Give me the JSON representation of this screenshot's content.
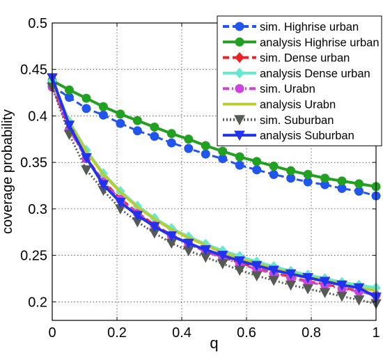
{
  "chart_data": {
    "type": "line",
    "title": "",
    "xlabel": "q",
    "ylabel": "coverage probability",
    "xlim": [
      0,
      1
    ],
    "ylim": [
      0.18,
      0.5
    ],
    "xticks": [
      0,
      0.2,
      0.4,
      0.6,
      0.8,
      1
    ],
    "xtick_labels": [
      "0",
      "0.2",
      "0.4",
      "0.6",
      "0.8",
      "1"
    ],
    "yticks": [
      0.2,
      0.25,
      0.3,
      0.35,
      0.4,
      0.45,
      0.5
    ],
    "ytick_labels": [
      "0.2",
      "0.25",
      "0.3",
      "0.35",
      "0.4",
      "0.45",
      "0.5"
    ],
    "grid": true,
    "legend_position": "top-right",
    "x": [
      0,
      0.0526,
      0.1053,
      0.1579,
      0.2105,
      0.2632,
      0.3158,
      0.3684,
      0.4211,
      0.4737,
      0.5263,
      0.5789,
      0.6316,
      0.6842,
      0.7368,
      0.7895,
      0.8421,
      0.8947,
      0.9474,
      1
    ],
    "series": [
      {
        "name": "sim. Highrise urban",
        "color": "#2255ee",
        "style": "dashed",
        "marker": "circle-filled",
        "values": [
          0.432,
          0.42,
          0.408,
          0.401,
          0.392,
          0.384,
          0.378,
          0.371,
          0.365,
          0.359,
          0.354,
          0.347,
          0.342,
          0.337,
          0.333,
          0.329,
          0.326,
          0.322,
          0.319,
          0.314
        ]
      },
      {
        "name": "analysis Highrise urban",
        "color": "#22a022",
        "style": "solid",
        "marker": "circle-filled",
        "values": [
          0.438,
          0.428,
          0.419,
          0.41,
          0.402,
          0.395,
          0.388,
          0.381,
          0.375,
          0.368,
          0.362,
          0.356,
          0.351,
          0.346,
          0.341,
          0.337,
          0.333,
          0.33,
          0.327,
          0.324
        ]
      },
      {
        "name": "sim. Dense urban",
        "color": "#ee2222",
        "style": "dashed",
        "marker": "diamond",
        "values": [
          0.432,
          0.386,
          0.355,
          0.33,
          0.311,
          0.296,
          0.283,
          0.272,
          0.263,
          0.255,
          0.248,
          0.242,
          0.236,
          0.231,
          0.227,
          0.222,
          0.219,
          0.215,
          0.212,
          0.208
        ]
      },
      {
        "name": "analysis Dense urban",
        "color": "#66e8cc",
        "style": "solid",
        "marker": "diamond",
        "values": [
          0.438,
          0.394,
          0.363,
          0.338,
          0.319,
          0.303,
          0.29,
          0.279,
          0.27,
          0.262,
          0.255,
          0.249,
          0.243,
          0.238,
          0.233,
          0.229,
          0.225,
          0.221,
          0.218,
          0.215
        ]
      },
      {
        "name": "sim. Urabn",
        "color": "#cc44dd",
        "style": "dashdot",
        "marker": "circle-filled",
        "values": [
          0.431,
          0.385,
          0.354,
          0.329,
          0.31,
          0.295,
          0.282,
          0.271,
          0.262,
          0.254,
          0.247,
          0.241,
          0.235,
          0.23,
          0.226,
          0.221,
          0.218,
          0.214,
          0.211,
          0.207
        ]
      },
      {
        "name": "analysis Urabn",
        "color": "#bbcc33",
        "style": "solid",
        "marker": "none",
        "values": [
          0.438,
          0.393,
          0.362,
          0.337,
          0.318,
          0.302,
          0.289,
          0.278,
          0.269,
          0.261,
          0.253,
          0.247,
          0.241,
          0.236,
          0.231,
          0.227,
          0.223,
          0.219,
          0.215,
          0.212
        ]
      },
      {
        "name": "sim. Suburban",
        "color": "#555a55",
        "style": "dotted",
        "marker": "triangle-down",
        "values": [
          0.431,
          0.38,
          0.342,
          0.32,
          0.3,
          0.286,
          0.274,
          0.263,
          0.255,
          0.248,
          0.241,
          0.234,
          0.228,
          0.223,
          0.218,
          0.214,
          0.21,
          0.206,
          0.202,
          0.198
        ]
      },
      {
        "name": "analysis Suburban",
        "color": "#2233ee",
        "style": "solid",
        "marker": "triangle-down",
        "values": [
          0.441,
          0.39,
          0.355,
          0.326,
          0.307,
          0.293,
          0.281,
          0.271,
          0.263,
          0.256,
          0.25,
          0.244,
          0.239,
          0.234,
          0.23,
          0.226,
          0.222,
          0.218,
          0.215,
          0.205
        ]
      }
    ]
  }
}
